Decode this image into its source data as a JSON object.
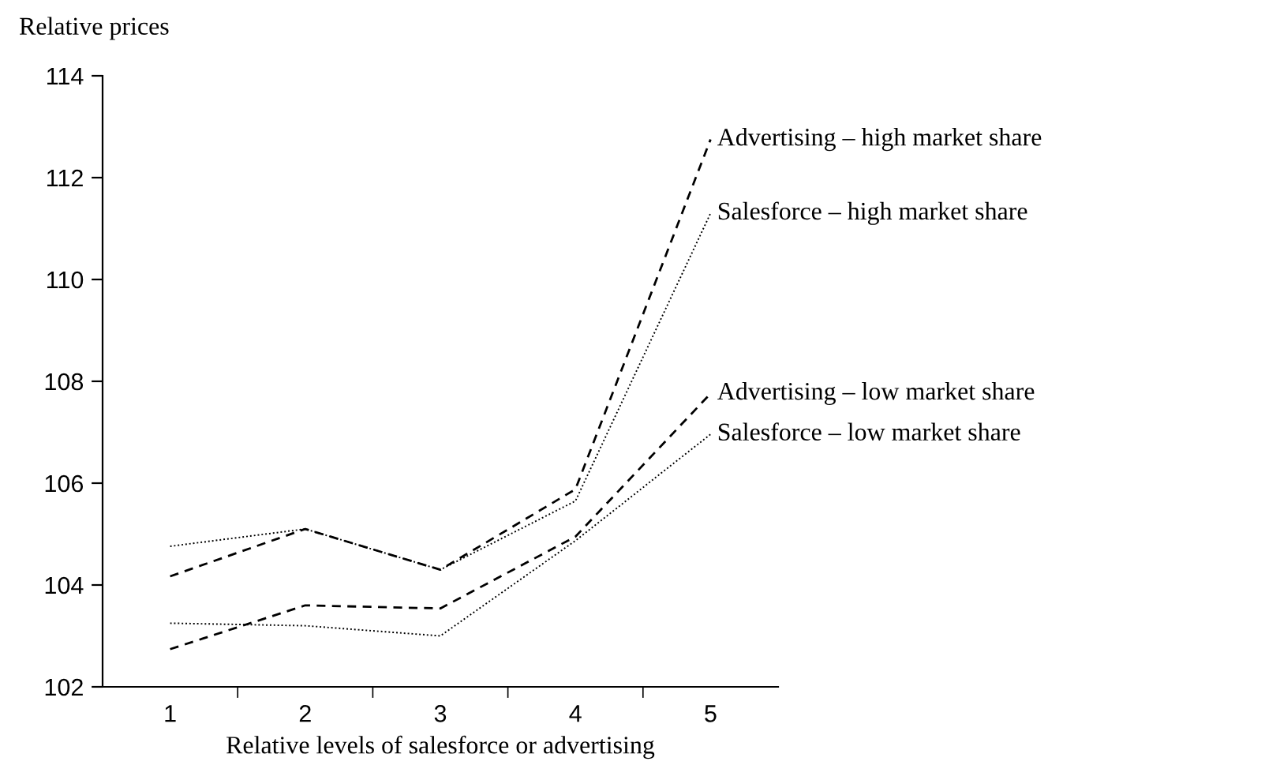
{
  "chart_data": {
    "type": "line",
    "ylabel": "Relative prices",
    "xlabel": "Relative levels of salesforce or advertising",
    "categories": [
      "1",
      "2",
      "3",
      "4",
      "5"
    ],
    "series": [
      {
        "name": "Advertising – high market share",
        "color": "#000000",
        "line_style": "dashed",
        "values": [
          104.17,
          105.1,
          104.3,
          105.88,
          112.75
        ]
      },
      {
        "name": "Salesforce – high market share",
        "color": "#000000",
        "line_style": "dotted",
        "values": [
          104.76,
          105.1,
          104.3,
          105.65,
          111.3
        ]
      },
      {
        "name": "Advertising – low market share",
        "color": "#000000",
        "line_style": "dashed",
        "values": [
          102.74,
          103.6,
          103.54,
          104.95,
          107.76
        ]
      },
      {
        "name": "Salesforce – low market share",
        "color": "#000000",
        "line_style": "dotted",
        "values": [
          103.25,
          103.2,
          103.0,
          104.87,
          106.96
        ]
      }
    ],
    "ylim": [
      102,
      114
    ],
    "yticks": [
      102,
      104,
      106,
      108,
      110,
      112,
      114
    ],
    "grid": false,
    "legend": false,
    "marker": "none"
  }
}
